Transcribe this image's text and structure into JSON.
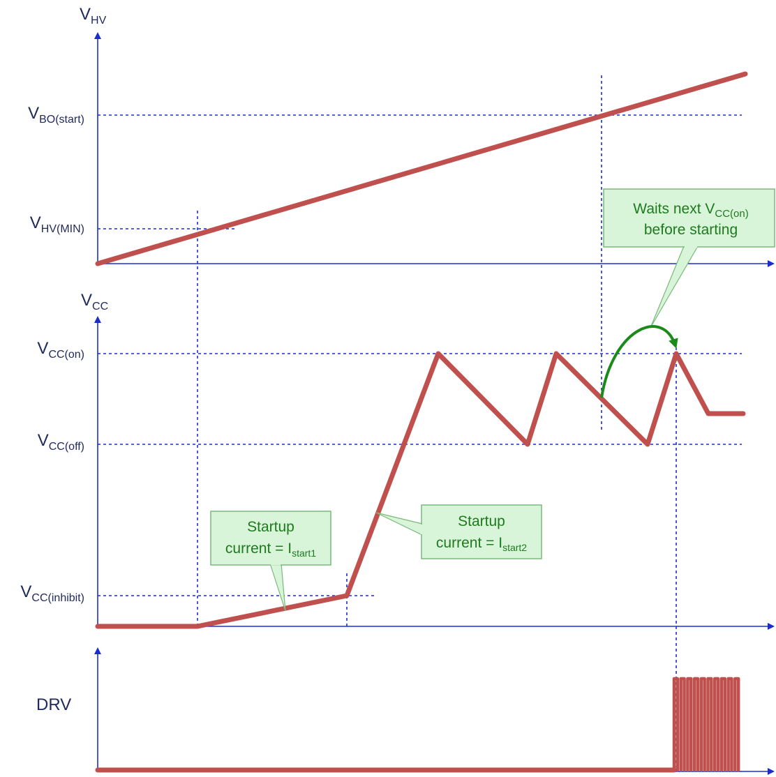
{
  "colors": {
    "axis": "#1a2ecc",
    "guide": "#1a2ecc",
    "trace": "#c0504d",
    "callout_fill": "#d9f5d9",
    "callout_border": "#7ab87a",
    "callout_text": "#1d7a1d",
    "arrow_green": "#1a8a1a",
    "label": "#1f2a5c"
  },
  "axes": {
    "vhv": {
      "symbol": "V",
      "sub": "HV"
    },
    "vcc": {
      "symbol": "V",
      "sub": "CC"
    },
    "drv": {
      "label": "DRV"
    }
  },
  "levels": {
    "vbo_start": {
      "symbol": "V",
      "sub": "BO(start)"
    },
    "vhv_min": {
      "symbol": "V",
      "sub": "HV(MIN)"
    },
    "vcc_on": {
      "symbol": "V",
      "sub": "CC(on)"
    },
    "vcc_off": {
      "symbol": "V",
      "sub": "CC(off)"
    },
    "vcc_inhibit": {
      "symbol": "V",
      "sub": "CC(inhibit)"
    }
  },
  "callouts": {
    "startup1": {
      "line1": "Startup",
      "line2_prefix": "current = I",
      "line2_sub": "start1"
    },
    "startup2": {
      "line1": "Startup",
      "line2_prefix": "current = I",
      "line2_sub": "start2"
    },
    "waits": {
      "line1_prefix": "Waits next V",
      "line1_sub": "CC(on)",
      "line2": "before starting"
    }
  },
  "drv_pulses": 10
}
